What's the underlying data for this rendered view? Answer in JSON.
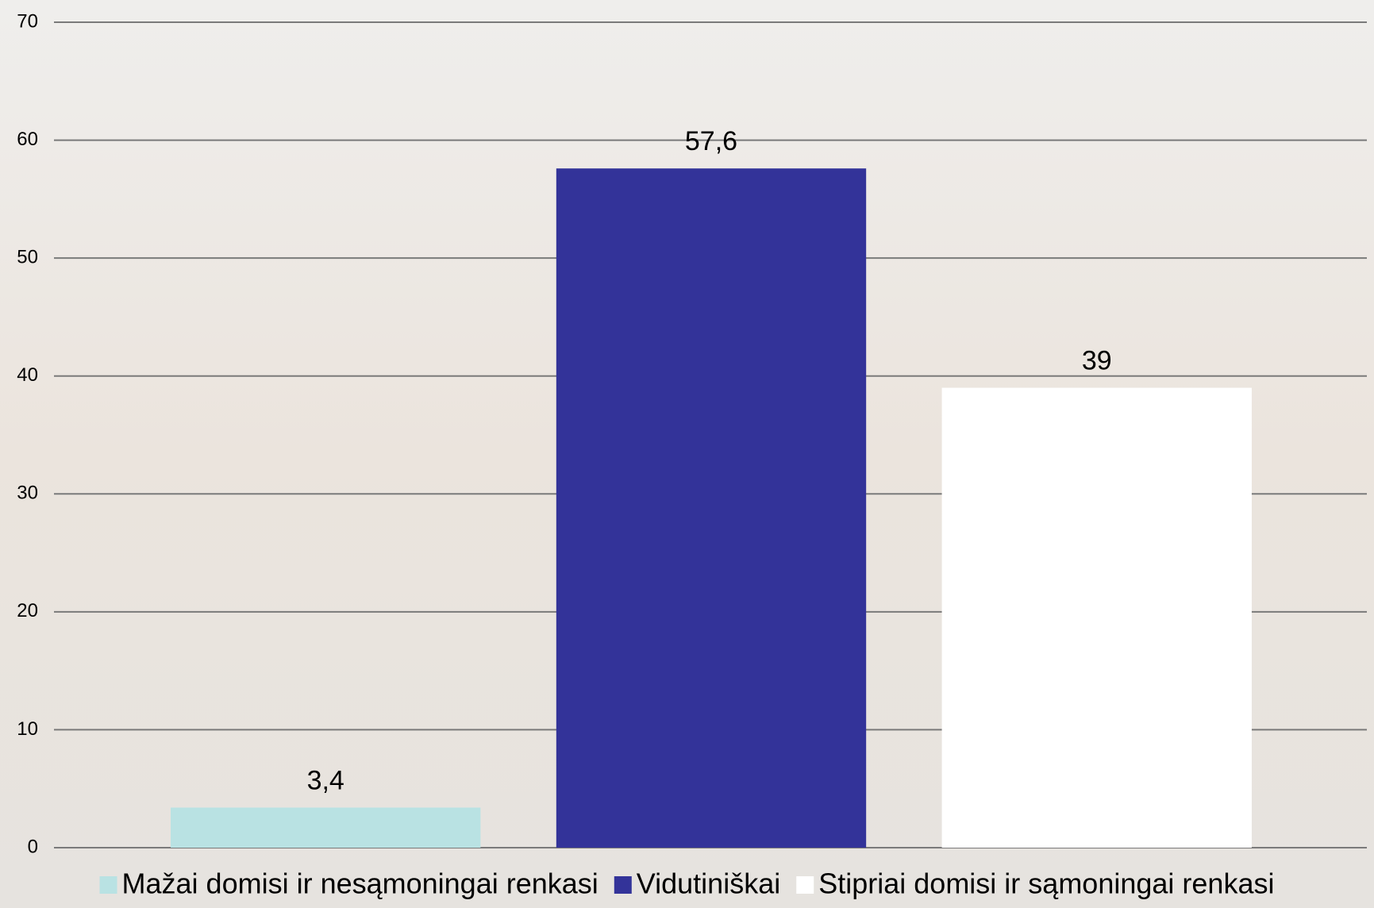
{
  "chart_data": {
    "type": "bar",
    "categories": [
      null
    ],
    "series": [
      {
        "name": "Mažai domisi ir nesąmoningai renkasi",
        "color": "#b9e2e3",
        "values": [
          3.4
        ],
        "value_labels": [
          "3,4"
        ]
      },
      {
        "name": "Vidutiniškai",
        "color": "#333399",
        "values": [
          57.6
        ],
        "value_labels": [
          "57,6"
        ]
      },
      {
        "name": "Stipriai domisi ir sąmoningai renkasi",
        "color": "#ffffff",
        "values": [
          39
        ],
        "value_labels": [
          "39"
        ]
      }
    ],
    "ylim": [
      0,
      70
    ],
    "yticks": [
      0,
      10,
      20,
      30,
      40,
      50,
      60,
      70
    ],
    "grid": true,
    "legend": "bottom"
  }
}
